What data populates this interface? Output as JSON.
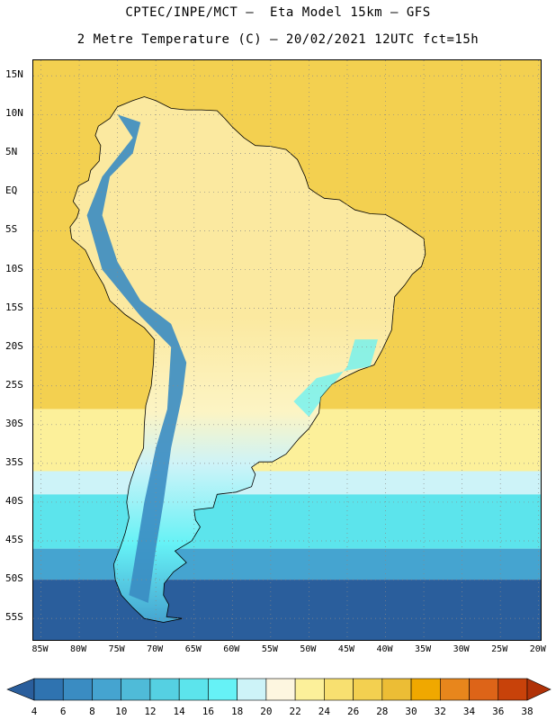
{
  "header": {
    "line1": "CPTEC/INPE/MCT –  Eta Model 15km – GFS",
    "line2": "2 Metre Temperature (C) – 20/02/2021 12UTC fct=15h"
  },
  "lat_labels": [
    "15N",
    "10N",
    "5N",
    "EQ",
    "5S",
    "10S",
    "15S",
    "20S",
    "25S",
    "30S",
    "35S",
    "40S",
    "45S",
    "50S",
    "55S"
  ],
  "lon_labels": [
    "85W",
    "80W",
    "75W",
    "70W",
    "65W",
    "60W",
    "55W",
    "50W",
    "45W",
    "40W",
    "35W",
    "30W",
    "25W",
    "20W"
  ],
  "map_extent": {
    "lon_min": -86,
    "lon_max": -19.5,
    "lat_min": -58,
    "lat_max": 17
  },
  "colorbar": {
    "labels": [
      "4",
      "6",
      "8",
      "10",
      "12",
      "14",
      "16",
      "18",
      "20",
      "22",
      "24",
      "26",
      "28",
      "30",
      "32",
      "34",
      "36",
      "38"
    ],
    "colors": [
      "#2a5e9c",
      "#2f73b0",
      "#3a8cc2",
      "#45a4d0",
      "#4fbbd8",
      "#55d0e2",
      "#5ce4ec",
      "#66f2f6",
      "#cdf3f8",
      "#fdf6e0",
      "#fcf09a",
      "#f8e070",
      "#f3d050",
      "#ecbd35",
      "#f0a800",
      "#e8861c",
      "#dd6418",
      "#c8420a",
      "#b03208"
    ]
  },
  "map_colors": {
    "ocean_south": "#2a5e9c",
    "ocean_cold": "#45a4d0",
    "ocean_cool": "#5ce4ec",
    "ocean_mild": "#cdf3f8",
    "ocean_warm": "#fcf09a",
    "ocean_hot": "#f3d050",
    "land_hot": "#fbe9a0",
    "land_warm": "#fcf4c4",
    "andes": "#3a8cc2",
    "highland": "#66f2f6"
  }
}
